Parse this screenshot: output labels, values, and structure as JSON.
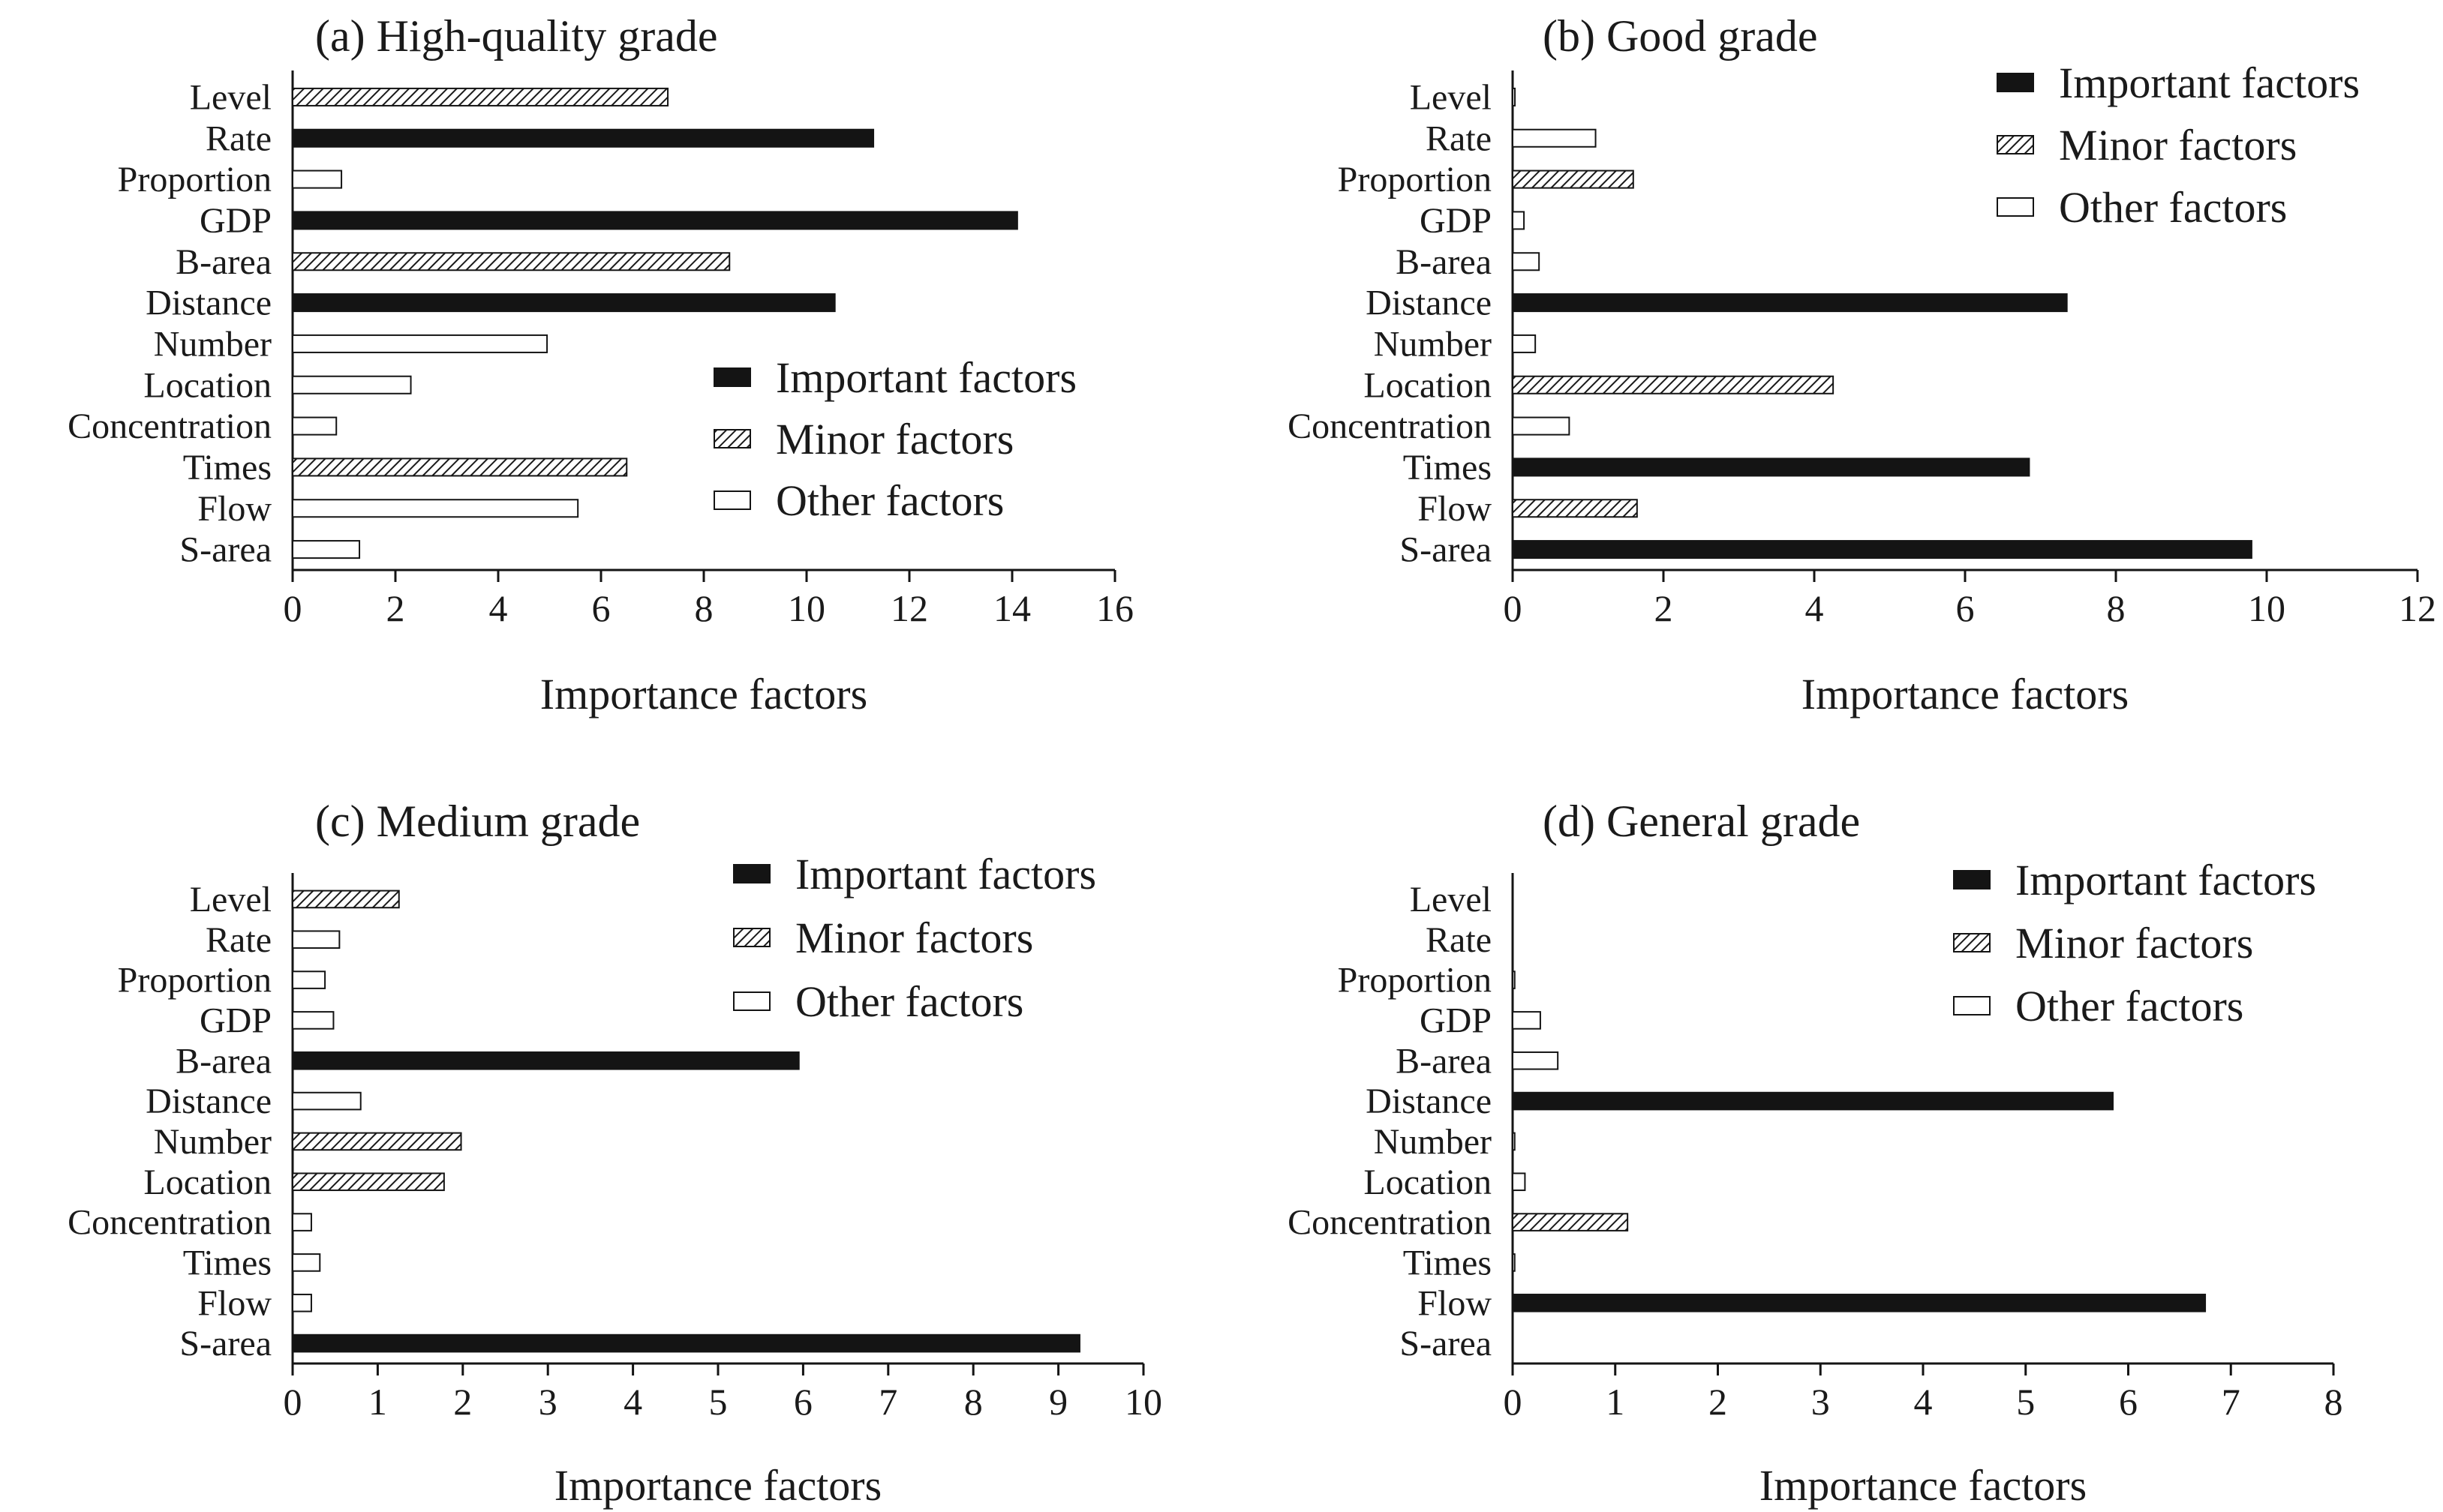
{
  "colors": {
    "important": "#141414",
    "minor": "#1a1a1a",
    "other": "#ffffff",
    "stroke": "#141414"
  },
  "legend_labels": {
    "important": "Important factors",
    "minor": "Minor factors",
    "other": "Other factors"
  },
  "chart_data": [
    {
      "type": "bar",
      "orientation": "horizontal",
      "title": "(a) High-quality grade",
      "xlabel": "Importance factors",
      "xlim": [
        0,
        16
      ],
      "xticks": [
        "0",
        "2",
        "4",
        "6",
        "8",
        "10",
        "12",
        "14",
        "16"
      ],
      "legend_position": "center-right",
      "categories": [
        "Level",
        "Rate",
        "Proportion",
        "GDP",
        "B-area",
        "Distance",
        "Number",
        "Location",
        "Concentration",
        "Times",
        "Flow",
        "S-area"
      ],
      "values": [
        7.3,
        11.3,
        0.95,
        14.1,
        8.5,
        10.55,
        4.95,
        2.3,
        0.85,
        6.5,
        5.55,
        1.3
      ],
      "groups": [
        "minor",
        "important",
        "other",
        "important",
        "minor",
        "important",
        "other",
        "other",
        "other",
        "minor",
        "other",
        "other"
      ]
    },
    {
      "type": "bar",
      "orientation": "horizontal",
      "title": "(b) Good grade",
      "xlabel": "Importance factors",
      "xlim": [
        0,
        12
      ],
      "xticks": [
        "0",
        "2",
        "4",
        "6",
        "8",
        "10",
        "12"
      ],
      "legend_position": "top-right",
      "categories": [
        "Level",
        "Rate",
        "Proportion",
        "GDP",
        "B-area",
        "Distance",
        "Number",
        "Location",
        "Concentration",
        "Times",
        "Flow",
        "S-area"
      ],
      "values": [
        0.03,
        1.1,
        1.6,
        0.15,
        0.35,
        7.35,
        0.3,
        4.25,
        0.75,
        6.85,
        1.65,
        9.8
      ],
      "groups": [
        "other",
        "other",
        "minor",
        "other",
        "other",
        "important",
        "other",
        "minor",
        "other",
        "important",
        "minor",
        "important"
      ]
    },
    {
      "type": "bar",
      "orientation": "horizontal",
      "title": "(c) Medium grade",
      "xlabel": "Importance factors",
      "xlim": [
        0,
        10
      ],
      "xticks": [
        "0",
        "1",
        "2",
        "3",
        "4",
        "5",
        "6",
        "7",
        "8",
        "9",
        "10"
      ],
      "legend_position": "top-right",
      "categories": [
        "Level",
        "Rate",
        "Proportion",
        "GDP",
        "B-area",
        "Distance",
        "Number",
        "Location",
        "Concentration",
        "Times",
        "Flow",
        "S-area"
      ],
      "values": [
        1.25,
        0.55,
        0.38,
        0.48,
        5.95,
        0.8,
        1.98,
        1.78,
        0.22,
        0.32,
        0.22,
        9.25
      ],
      "groups": [
        "minor",
        "other",
        "other",
        "other",
        "important",
        "other",
        "minor",
        "minor",
        "other",
        "other",
        "other",
        "important"
      ]
    },
    {
      "type": "bar",
      "orientation": "horizontal",
      "title": "(d) General grade",
      "xlabel": "Importance factors",
      "xlim": [
        0,
        8
      ],
      "xticks": [
        "0",
        "1",
        "2",
        "3",
        "4",
        "5",
        "6",
        "7",
        "8"
      ],
      "legend_position": "top-right",
      "categories": [
        "Level",
        "Rate",
        "Proportion",
        "GDP",
        "B-area",
        "Distance",
        "Number",
        "Location",
        "Concentration",
        "Times",
        "Flow",
        "S-area"
      ],
      "values": [
        0,
        0,
        0.02,
        0.27,
        0.44,
        5.85,
        0.02,
        0.12,
        1.12,
        0.02,
        6.75,
        0
      ],
      "groups": [
        "other",
        "other",
        "other",
        "other",
        "other",
        "important",
        "other",
        "other",
        "minor",
        "other",
        "important",
        "other"
      ]
    }
  ]
}
